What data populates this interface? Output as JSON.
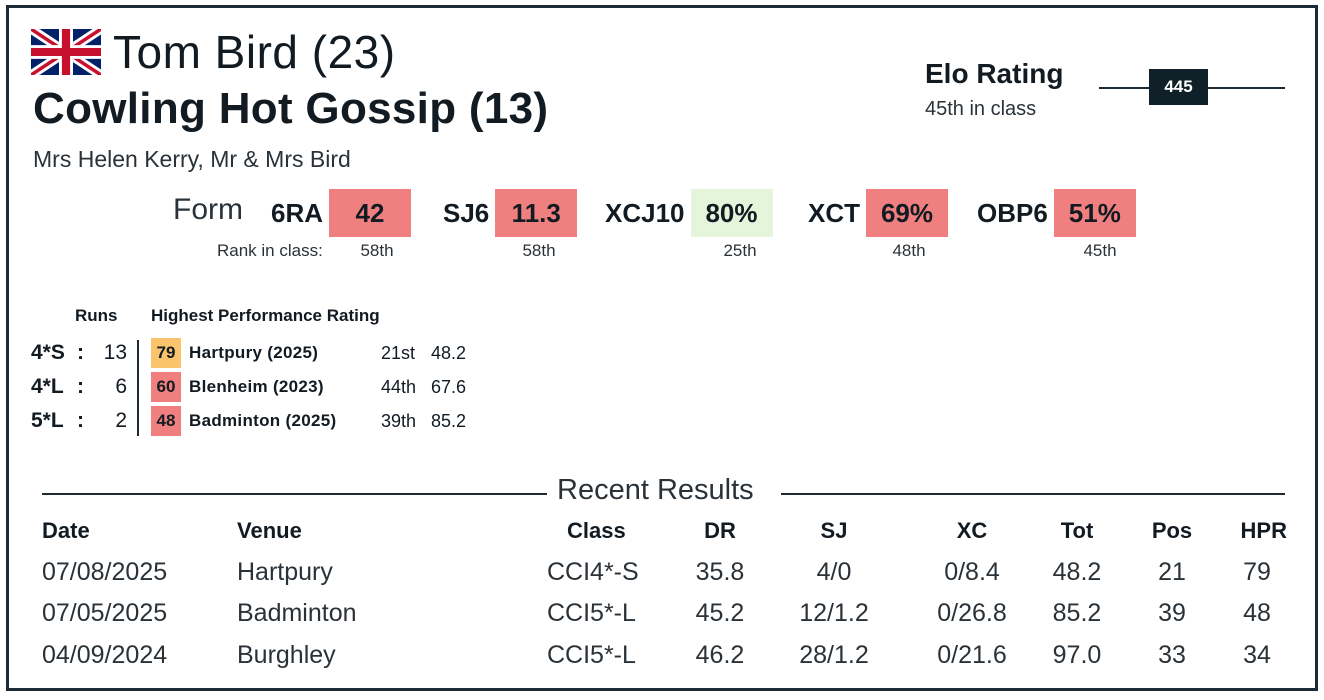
{
  "header": {
    "rider": "Tom Bird (23)",
    "horse": "Cowling Hot Gossip (13)",
    "owners": "Mrs Helen Kerry, Mr & Mrs Bird",
    "flag_icon": "uk-flag-icon"
  },
  "elo": {
    "title": "Elo Rating",
    "subtitle": "45th in class",
    "value": "445"
  },
  "form": {
    "label": "Form",
    "rank_label": "Rank in class:",
    "items": [
      {
        "code": "6RA",
        "value": "42",
        "rank": "58th",
        "color": "#f08080"
      },
      {
        "code": "SJ6",
        "value": "11.3",
        "rank": "58th",
        "color": "#f08080"
      },
      {
        "code": "XCJ10",
        "value": "80%",
        "rank": "25th",
        "color": "#e4f5dc"
      },
      {
        "code": "XCT",
        "value": "69%",
        "rank": "48th",
        "color": "#f08080"
      },
      {
        "code": "OBP6",
        "value": "51%",
        "rank": "45th",
        "color": "#f08080"
      }
    ]
  },
  "runs": {
    "runs_header": "Runs",
    "hpr_header": "Highest Performance Rating",
    "rows": [
      {
        "class": "4*S",
        "colon": ":",
        "count": "13",
        "hpr": "79",
        "hpr_color": "#f9c46b",
        "event": "Hartpury (2025)",
        "pos": "21st",
        "score": "48.2"
      },
      {
        "class": "4*L",
        "colon": ":",
        "count": "6",
        "hpr": "60",
        "hpr_color": "#f08080",
        "event": "Blenheim (2023)",
        "pos": "44th",
        "score": "67.6"
      },
      {
        "class": "5*L",
        "colon": ":",
        "count": "2",
        "hpr": "48",
        "hpr_color": "#f08080",
        "event": "Badminton (2025)",
        "pos": "39th",
        "score": "85.2"
      }
    ]
  },
  "recent": {
    "title": "Recent Results",
    "headers": {
      "date": "Date",
      "venue": "Venue",
      "class": "Class",
      "dr": "DR",
      "sj": "SJ",
      "xc": "XC",
      "tot": "Tot",
      "pos": "Pos",
      "hpr": "HPR"
    },
    "rows": [
      {
        "date": "07/08/2025",
        "venue": "Hartpury",
        "class": "CCI4*-S",
        "dr": "35.8",
        "sj": "4/0",
        "xc": "0/8.4",
        "tot": "48.2",
        "pos": "21",
        "hpr": "79"
      },
      {
        "date": "07/05/2025",
        "venue": "Badminton",
        "class": "CCI5*-L",
        "dr": "45.2",
        "sj": "12/1.2",
        "xc": "0/26.8",
        "tot": "85.2",
        "pos": "39",
        "hpr": "48"
      },
      {
        "date": "04/09/2024",
        "venue": "Burghley",
        "class": "CCI5*-L",
        "dr": "46.2",
        "sj": "28/1.2",
        "xc": "0/21.6",
        "tot": "97.0",
        "pos": "33",
        "hpr": "34"
      }
    ]
  }
}
